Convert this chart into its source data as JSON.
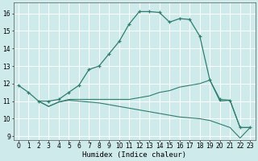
{
  "bg_color": "#ceeaea",
  "grid_color": "#ffffff",
  "line_color": "#2e7d6e",
  "line1_x": [
    0,
    1,
    2,
    3,
    4,
    5,
    6,
    7,
    8,
    9,
    10,
    11,
    12,
    13,
    14,
    15,
    16,
    17,
    18,
    19,
    20,
    21,
    22,
    23
  ],
  "line1_y": [
    11.9,
    11.5,
    11.0,
    11.0,
    11.1,
    11.5,
    11.9,
    12.8,
    13.0,
    13.7,
    14.4,
    15.4,
    16.1,
    16.1,
    16.05,
    15.5,
    15.7,
    15.65,
    14.7,
    12.2,
    11.1,
    11.05,
    9.5,
    9.5
  ],
  "line2_x": [
    2,
    3,
    4,
    5,
    6,
    7,
    8,
    9,
    10,
    11,
    12,
    13,
    14,
    15,
    16,
    17,
    18,
    19,
    20,
    21,
    22,
    23
  ],
  "line2_y": [
    11.0,
    10.7,
    10.95,
    11.1,
    11.1,
    11.1,
    11.1,
    11.1,
    11.1,
    11.1,
    11.2,
    11.3,
    11.5,
    11.6,
    11.8,
    11.9,
    12.0,
    12.2,
    11.0,
    11.05,
    9.5,
    9.5
  ],
  "line3_x": [
    2,
    3,
    4,
    5,
    6,
    7,
    8,
    9,
    10,
    11,
    12,
    13,
    14,
    15,
    16,
    17,
    18,
    19,
    20,
    21,
    22,
    23
  ],
  "line3_y": [
    11.0,
    10.7,
    10.95,
    11.05,
    11.0,
    10.95,
    10.9,
    10.8,
    10.7,
    10.6,
    10.5,
    10.4,
    10.3,
    10.2,
    10.1,
    10.05,
    10.0,
    9.9,
    9.7,
    9.5,
    8.9,
    9.5
  ],
  "xlabel": "Humidex (Indice chaleur)",
  "xlabel_fontsize": 6.5,
  "ylim": [
    8.8,
    16.6
  ],
  "xlim": [
    -0.5,
    23.5
  ],
  "yticks": [
    9,
    10,
    11,
    12,
    13,
    14,
    15,
    16
  ],
  "xticks": [
    0,
    1,
    2,
    3,
    4,
    5,
    6,
    7,
    8,
    9,
    10,
    11,
    12,
    13,
    14,
    15,
    16,
    17,
    18,
    19,
    20,
    21,
    22,
    23
  ],
  "tick_fontsize": 5.5
}
